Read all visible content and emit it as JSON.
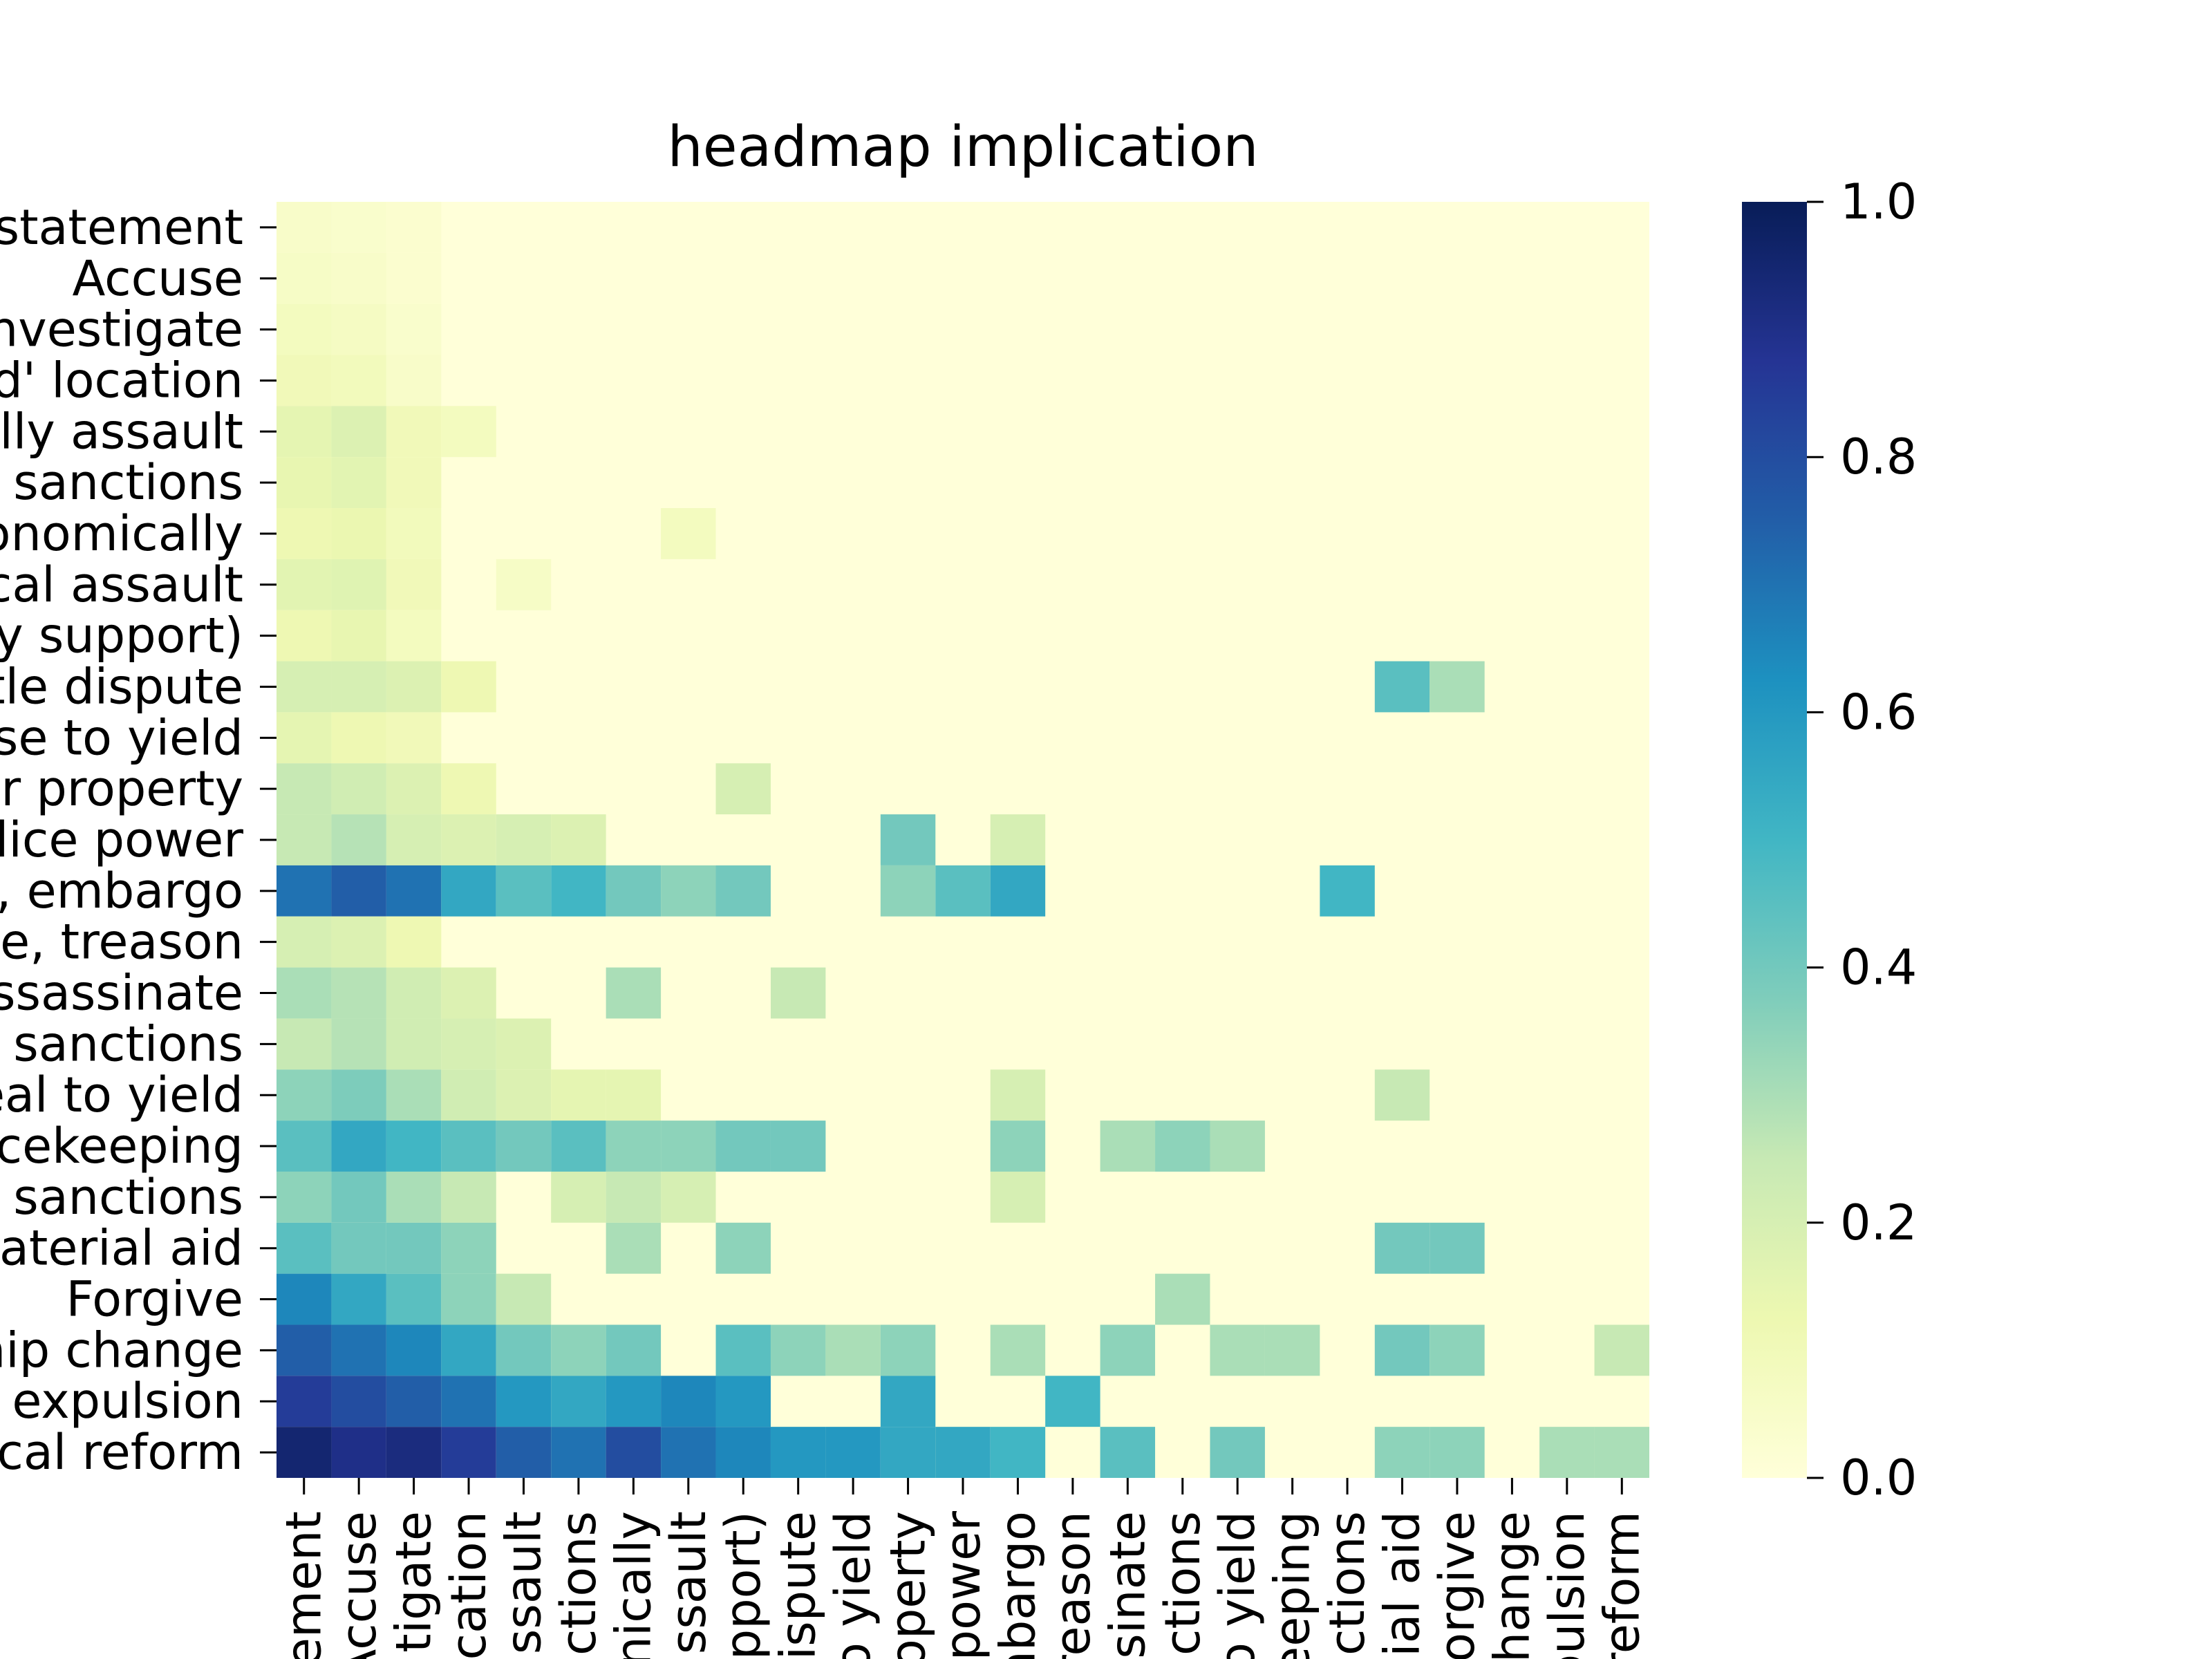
{
  "chart_data": {
    "type": "heatmap",
    "title": "headmap implication",
    "xlabel": "",
    "ylabel": "",
    "y_tick_labels": [
      "statement",
      "Accuse",
      "nvestigate",
      "d' location",
      "lly assault",
      "sanctions",
      "onomically",
      "cal assault",
      "y support)",
      "tle dispute",
      "se to yield",
      "r property",
      "lice power",
      ", embargo",
      "e, treason",
      "ssassinate",
      "sanctions",
      "eal to yield",
      "cekeeping",
      "sanctions",
      "aterial aid",
      "Forgive",
      "hip change",
      "expulsion",
      "cal reform"
    ],
    "x_tick_labels": [
      "ement",
      "Accuse",
      "tigate",
      "cation",
      "ssault",
      "ctions",
      "nically",
      "ssault",
      "pport)",
      "dispute",
      "o yield",
      "operty",
      "power",
      "mbargo",
      "reason",
      "sinate",
      "ctions",
      "o yield",
      "eeping",
      "ctions",
      "ial aid",
      "orgive",
      "hange",
      "pulsion",
      "reform"
    ],
    "grid_size": 25,
    "colorbar": {
      "colormap": "YlGnBu",
      "vmin": 0,
      "vmax": 1,
      "ticks": [
        0.0,
        0.2,
        0.4,
        0.6,
        0.8,
        1.0
      ],
      "tick_labels": [
        "0.0",
        "0.2",
        "0.4",
        "0.6",
        "0.8",
        "1.0"
      ]
    },
    "background_value": 0.0,
    "notes": "Dense ~500x500 matrix; values shown below are the visible non-zero blocks on the 25x25 labeled grid (row, col, value). All other cells are ~0.",
    "values": [
      [
        0,
        0,
        0.05
      ],
      [
        0,
        1,
        0.04
      ],
      [
        0,
        2,
        0.03
      ],
      [
        1,
        0,
        0.06
      ],
      [
        1,
        1,
        0.05
      ],
      [
        1,
        2,
        0.03
      ],
      [
        2,
        0,
        0.08
      ],
      [
        2,
        1,
        0.07
      ],
      [
        2,
        2,
        0.04
      ],
      [
        3,
        0,
        0.1
      ],
      [
        3,
        1,
        0.09
      ],
      [
        3,
        2,
        0.05
      ],
      [
        4,
        0,
        0.15
      ],
      [
        4,
        1,
        0.18
      ],
      [
        4,
        2,
        0.1
      ],
      [
        4,
        3,
        0.08
      ],
      [
        5,
        0,
        0.14
      ],
      [
        5,
        1,
        0.16
      ],
      [
        5,
        2,
        0.1
      ],
      [
        6,
        0,
        0.12
      ],
      [
        6,
        1,
        0.13
      ],
      [
        6,
        2,
        0.09
      ],
      [
        6,
        7,
        0.08
      ],
      [
        7,
        0,
        0.16
      ],
      [
        7,
        1,
        0.17
      ],
      [
        7,
        2,
        0.1
      ],
      [
        7,
        4,
        0.06
      ],
      [
        8,
        0,
        0.12
      ],
      [
        8,
        1,
        0.14
      ],
      [
        8,
        2,
        0.08
      ],
      [
        9,
        0,
        0.2
      ],
      [
        9,
        1,
        0.2
      ],
      [
        9,
        2,
        0.18
      ],
      [
        9,
        3,
        0.12
      ],
      [
        9,
        20,
        0.45
      ],
      [
        9,
        21,
        0.3
      ],
      [
        10,
        0,
        0.15
      ],
      [
        10,
        1,
        0.12
      ],
      [
        10,
        2,
        0.1
      ],
      [
        11,
        0,
        0.25
      ],
      [
        11,
        1,
        0.22
      ],
      [
        11,
        2,
        0.18
      ],
      [
        11,
        3,
        0.12
      ],
      [
        11,
        8,
        0.2
      ],
      [
        12,
        0,
        0.25
      ],
      [
        12,
        1,
        0.28
      ],
      [
        12,
        2,
        0.2
      ],
      [
        12,
        3,
        0.18
      ],
      [
        12,
        4,
        0.2
      ],
      [
        12,
        5,
        0.18
      ],
      [
        12,
        11,
        0.4
      ],
      [
        12,
        13,
        0.2
      ],
      [
        13,
        0,
        0.7
      ],
      [
        13,
        1,
        0.75
      ],
      [
        13,
        2,
        0.7
      ],
      [
        13,
        3,
        0.55
      ],
      [
        13,
        4,
        0.45
      ],
      [
        13,
        5,
        0.5
      ],
      [
        13,
        6,
        0.4
      ],
      [
        13,
        7,
        0.35
      ],
      [
        13,
        8,
        0.4
      ],
      [
        13,
        11,
        0.35
      ],
      [
        13,
        12,
        0.45
      ],
      [
        13,
        13,
        0.55
      ],
      [
        13,
        19,
        0.5
      ],
      [
        14,
        0,
        0.2
      ],
      [
        14,
        1,
        0.18
      ],
      [
        14,
        2,
        0.12
      ],
      [
        15,
        0,
        0.3
      ],
      [
        15,
        1,
        0.28
      ],
      [
        15,
        2,
        0.22
      ],
      [
        15,
        3,
        0.18
      ],
      [
        15,
        6,
        0.3
      ],
      [
        15,
        9,
        0.25
      ],
      [
        16,
        0,
        0.25
      ],
      [
        16,
        1,
        0.28
      ],
      [
        16,
        2,
        0.22
      ],
      [
        16,
        3,
        0.2
      ],
      [
        16,
        4,
        0.18
      ],
      [
        17,
        0,
        0.35
      ],
      [
        17,
        1,
        0.38
      ],
      [
        17,
        2,
        0.3
      ],
      [
        17,
        3,
        0.22
      ],
      [
        17,
        4,
        0.18
      ],
      [
        17,
        5,
        0.15
      ],
      [
        17,
        6,
        0.15
      ],
      [
        17,
        13,
        0.2
      ],
      [
        17,
        20,
        0.25
      ],
      [
        18,
        0,
        0.45
      ],
      [
        18,
        1,
        0.55
      ],
      [
        18,
        2,
        0.5
      ],
      [
        18,
        3,
        0.45
      ],
      [
        18,
        4,
        0.4
      ],
      [
        18,
        5,
        0.45
      ],
      [
        18,
        6,
        0.35
      ],
      [
        18,
        7,
        0.35
      ],
      [
        18,
        8,
        0.4
      ],
      [
        18,
        9,
        0.4
      ],
      [
        18,
        13,
        0.35
      ],
      [
        18,
        15,
        0.3
      ],
      [
        18,
        16,
        0.35
      ],
      [
        18,
        17,
        0.3
      ],
      [
        19,
        0,
        0.35
      ],
      [
        19,
        1,
        0.4
      ],
      [
        19,
        2,
        0.3
      ],
      [
        19,
        3,
        0.25
      ],
      [
        19,
        5,
        0.2
      ],
      [
        19,
        6,
        0.25
      ],
      [
        19,
        7,
        0.2
      ],
      [
        19,
        13,
        0.2
      ],
      [
        20,
        0,
        0.45
      ],
      [
        20,
        1,
        0.4
      ],
      [
        20,
        2,
        0.4
      ],
      [
        20,
        3,
        0.35
      ],
      [
        20,
        6,
        0.3
      ],
      [
        20,
        8,
        0.35
      ],
      [
        20,
        20,
        0.4
      ],
      [
        20,
        21,
        0.4
      ],
      [
        21,
        0,
        0.65
      ],
      [
        21,
        1,
        0.55
      ],
      [
        21,
        2,
        0.45
      ],
      [
        21,
        3,
        0.35
      ],
      [
        21,
        4,
        0.25
      ],
      [
        21,
        16,
        0.3
      ],
      [
        22,
        0,
        0.75
      ],
      [
        22,
        1,
        0.7
      ],
      [
        22,
        2,
        0.65
      ],
      [
        22,
        3,
        0.55
      ],
      [
        22,
        4,
        0.4
      ],
      [
        22,
        5,
        0.35
      ],
      [
        22,
        6,
        0.4
      ],
      [
        22,
        8,
        0.45
      ],
      [
        22,
        9,
        0.35
      ],
      [
        22,
        10,
        0.3
      ],
      [
        22,
        11,
        0.35
      ],
      [
        22,
        13,
        0.3
      ],
      [
        22,
        15,
        0.35
      ],
      [
        22,
        17,
        0.3
      ],
      [
        22,
        18,
        0.3
      ],
      [
        22,
        20,
        0.4
      ],
      [
        22,
        21,
        0.35
      ],
      [
        22,
        24,
        0.25
      ],
      [
        23,
        0,
        0.85
      ],
      [
        23,
        1,
        0.8
      ],
      [
        23,
        2,
        0.75
      ],
      [
        23,
        3,
        0.7
      ],
      [
        23,
        4,
        0.6
      ],
      [
        23,
        5,
        0.55
      ],
      [
        23,
        6,
        0.6
      ],
      [
        23,
        7,
        0.65
      ],
      [
        23,
        8,
        0.6
      ],
      [
        23,
        11,
        0.55
      ],
      [
        23,
        14,
        0.5
      ],
      [
        24,
        0,
        0.95
      ],
      [
        24,
        1,
        0.9
      ],
      [
        24,
        2,
        0.92
      ],
      [
        24,
        3,
        0.85
      ],
      [
        24,
        4,
        0.75
      ],
      [
        24,
        5,
        0.7
      ],
      [
        24,
        6,
        0.8
      ],
      [
        24,
        7,
        0.7
      ],
      [
        24,
        8,
        0.65
      ],
      [
        24,
        9,
        0.6
      ],
      [
        24,
        10,
        0.6
      ],
      [
        24,
        11,
        0.55
      ],
      [
        24,
        12,
        0.55
      ],
      [
        24,
        13,
        0.5
      ],
      [
        24,
        15,
        0.45
      ],
      [
        24,
        17,
        0.4
      ],
      [
        24,
        20,
        0.35
      ],
      [
        24,
        21,
        0.35
      ],
      [
        24,
        23,
        0.3
      ],
      [
        24,
        24,
        0.3
      ]
    ]
  }
}
